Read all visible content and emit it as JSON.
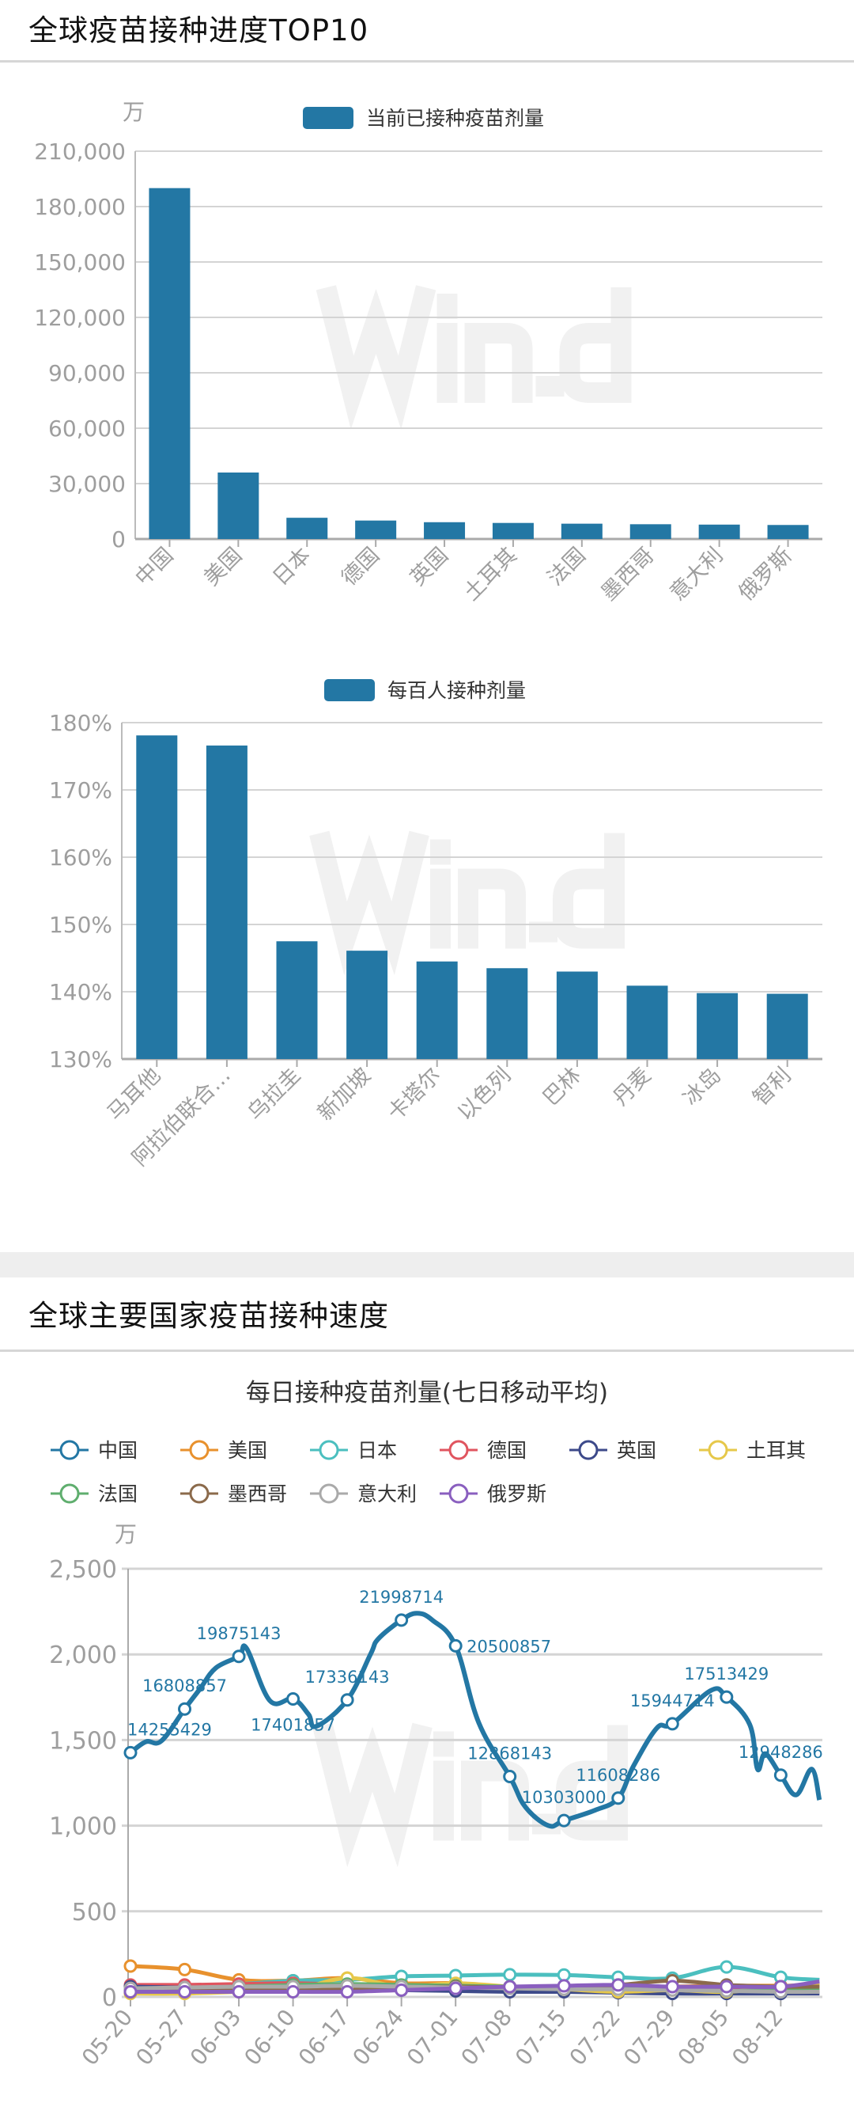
{
  "section1": {
    "title": "全球疫苗接种进度TOP10"
  },
  "section2": {
    "title": "全球主要国家疫苗接种速度"
  },
  "watermark": "Win.d",
  "colors": {
    "bar": "#2377a4",
    "grid": "#d4d4d4",
    "axis_text": "#9e9e9e"
  },
  "chart_data": [
    {
      "type": "bar",
      "unit_label": "万",
      "legend": [
        "当前已接种疫苗剂量"
      ],
      "categories": [
        "中国",
        "美国",
        "日本",
        "德国",
        "英国",
        "土耳其",
        "法国",
        "墨西哥",
        "意大利",
        "俄罗斯"
      ],
      "series": [
        {
          "name": "当前已接种疫苗剂量",
          "values": [
            190000,
            36000,
            11500,
            10000,
            9100,
            8700,
            8300,
            8000,
            7800,
            7600
          ]
        }
      ],
      "yticks": [
        "0",
        "30,000",
        "60,000",
        "90,000",
        "120,000",
        "150,000",
        "180,000",
        "210,000"
      ],
      "ylim": [
        0,
        210000
      ],
      "grid": true,
      "legend_position": "top"
    },
    {
      "type": "bar",
      "legend": [
        "每百人接种剂量"
      ],
      "categories": [
        "马耳他",
        "阿拉伯联合…",
        "乌拉圭",
        "新加坡",
        "卡塔尔",
        "以色列",
        "巴林",
        "丹麦",
        "冰岛",
        "智利"
      ],
      "series": [
        {
          "name": "每百人接种剂量",
          "values": [
            178.1,
            176.6,
            147.5,
            146.1,
            144.5,
            143.5,
            143.0,
            140.9,
            139.8,
            139.7
          ]
        }
      ],
      "yticks": [
        "130%",
        "140%",
        "150%",
        "160%",
        "170%",
        "180%"
      ],
      "ylim": [
        130,
        180
      ],
      "grid": true,
      "legend_position": "top"
    },
    {
      "type": "line",
      "title": "每日接种疫苗剂量(七日移动平均)",
      "unit_label": "万",
      "ylim": [
        0,
        2500
      ],
      "yticks": [
        "0",
        "500",
        "1,000",
        "1,500",
        "2,000",
        "2,500"
      ],
      "xticks": [
        "05-20",
        "05-27",
        "06-03",
        "06-10",
        "06-17",
        "06-24",
        "07-01",
        "07-08",
        "07-15",
        "07-22",
        "07-29",
        "08-05",
        "08-12"
      ],
      "grid": true,
      "legend_position": "top",
      "series": [
        {
          "name": "中国",
          "color": "#2377a4",
          "x": [
            "05-20",
            "05-22",
            "05-24",
            "05-27",
            "05-29",
            "05-31",
            "06-03",
            "06-04",
            "06-07",
            "06-10",
            "06-12",
            "06-13",
            "06-17",
            "06-20",
            "06-21",
            "06-24",
            "06-26",
            "06-28",
            "07-01",
            "07-04",
            "07-08",
            "07-10",
            "07-13",
            "07-15",
            "07-19",
            "07-22",
            "07-24",
            "07-27",
            "07-29",
            "08-03",
            "08-05",
            "08-08",
            "08-09",
            "08-10",
            "08-12",
            "08-14",
            "08-16",
            "08-17"
          ],
          "y": [
            1426,
            1490,
            1495,
            1681,
            1800,
            1920,
            1988,
            2035,
            1730,
            1740,
            1650,
            1580,
            1734,
            2000,
            2090,
            2200,
            2240,
            2200,
            2050,
            1600,
            1287,
            1110,
            1000,
            1030,
            1090,
            1161,
            1350,
            1570,
            1595,
            1790,
            1751,
            1590,
            1330,
            1420,
            1295,
            1180,
            1330,
            1150
          ],
          "labels": {
            "05-20": "14255429",
            "05-27": "16808857",
            "06-03": "19875143",
            "06-10": "17401857",
            "06-17": "17336143",
            "06-24": "21998714",
            "07-01": "20500857",
            "07-08": "12868143",
            "07-15": "10303000",
            "07-22": "11608286",
            "07-29": "15944714",
            "08-05": "17513429",
            "08-12": "12948286"
          }
        },
        {
          "name": "美国",
          "color": "#e8912d",
          "x": [
            "05-20",
            "05-27",
            "06-03",
            "06-10",
            "06-17",
            "06-24",
            "07-01",
            "07-08",
            "07-15",
            "07-22",
            "07-29",
            "08-05",
            "08-12",
            "08-17"
          ],
          "y": [
            180,
            160,
            100,
            95,
            110,
            80,
            80,
            60,
            60,
            55,
            60,
            65,
            65,
            70
          ]
        },
        {
          "name": "日本",
          "color": "#4bbfbf",
          "x": [
            "05-20",
            "05-27",
            "06-03",
            "06-10",
            "06-17",
            "06-24",
            "07-01",
            "07-08",
            "07-15",
            "07-22",
            "07-29",
            "08-05",
            "08-12",
            "08-17"
          ],
          "y": [
            60,
            60,
            75,
            95,
            100,
            120,
            125,
            130,
            128,
            115,
            110,
            175,
            115,
            100
          ]
        },
        {
          "name": "德国",
          "color": "#e0555f",
          "x": [
            "05-20",
            "05-27",
            "06-03",
            "06-10",
            "06-17",
            "06-24",
            "07-01",
            "07-08",
            "07-15",
            "07-22",
            "07-29",
            "08-05",
            "08-12",
            "08-17"
          ],
          "y": [
            70,
            70,
            75,
            80,
            70,
            55,
            50,
            45,
            45,
            45,
            40,
            40,
            35,
            35
          ]
        },
        {
          "name": "英国",
          "color": "#3d4a8a",
          "x": [
            "05-20",
            "05-27",
            "06-03",
            "06-10",
            "06-17",
            "06-24",
            "07-01",
            "07-08",
            "07-15",
            "07-22",
            "07-29",
            "08-05",
            "08-12",
            "08-17"
          ],
          "y": [
            60,
            55,
            55,
            50,
            45,
            40,
            35,
            30,
            30,
            25,
            20,
            20,
            20,
            20
          ]
        },
        {
          "name": "土耳其",
          "color": "#e6c84a",
          "x": [
            "05-20",
            "05-27",
            "06-03",
            "06-10",
            "06-17",
            "06-24",
            "07-01",
            "07-08",
            "07-15",
            "07-22",
            "07-29",
            "08-05",
            "08-12",
            "08-17"
          ],
          "y": [
            20,
            20,
            30,
            40,
            110,
            60,
            80,
            60,
            45,
            30,
            40,
            30,
            60,
            80
          ]
        },
        {
          "name": "法国",
          "color": "#5fae6e",
          "x": [
            "05-20",
            "05-27",
            "06-03",
            "06-10",
            "06-17",
            "06-24",
            "07-01",
            "07-08",
            "07-15",
            "07-22",
            "07-29",
            "08-05",
            "08-12",
            "08-17"
          ],
          "y": [
            45,
            50,
            60,
            70,
            75,
            70,
            65,
            60,
            55,
            55,
            45,
            35,
            40,
            50
          ]
        },
        {
          "name": "墨西哥",
          "color": "#8b6a4b",
          "x": [
            "05-20",
            "05-27",
            "06-03",
            "06-10",
            "06-17",
            "06-24",
            "07-01",
            "07-08",
            "07-15",
            "07-22",
            "07-29",
            "08-05",
            "08-12",
            "08-17"
          ],
          "y": [
            30,
            35,
            40,
            45,
            50,
            55,
            60,
            55,
            55,
            70,
            95,
            70,
            60,
            60
          ]
        },
        {
          "name": "意大利",
          "color": "#aaaaaa",
          "x": [
            "05-20",
            "05-27",
            "06-03",
            "06-10",
            "06-17",
            "06-24",
            "07-01",
            "07-08",
            "07-15",
            "07-22",
            "07-29",
            "08-05",
            "08-12",
            "08-17"
          ],
          "y": [
            50,
            55,
            60,
            60,
            65,
            60,
            55,
            50,
            45,
            45,
            40,
            35,
            30,
            30
          ]
        },
        {
          "name": "俄罗斯",
          "color": "#8a5fbf",
          "x": [
            "05-20",
            "05-27",
            "06-03",
            "06-10",
            "06-17",
            "06-24",
            "07-01",
            "07-08",
            "07-15",
            "07-22",
            "07-29",
            "08-05",
            "08-12",
            "08-17"
          ],
          "y": [
            30,
            30,
            30,
            30,
            30,
            40,
            50,
            60,
            65,
            70,
            60,
            60,
            60,
            90
          ]
        }
      ]
    }
  ]
}
